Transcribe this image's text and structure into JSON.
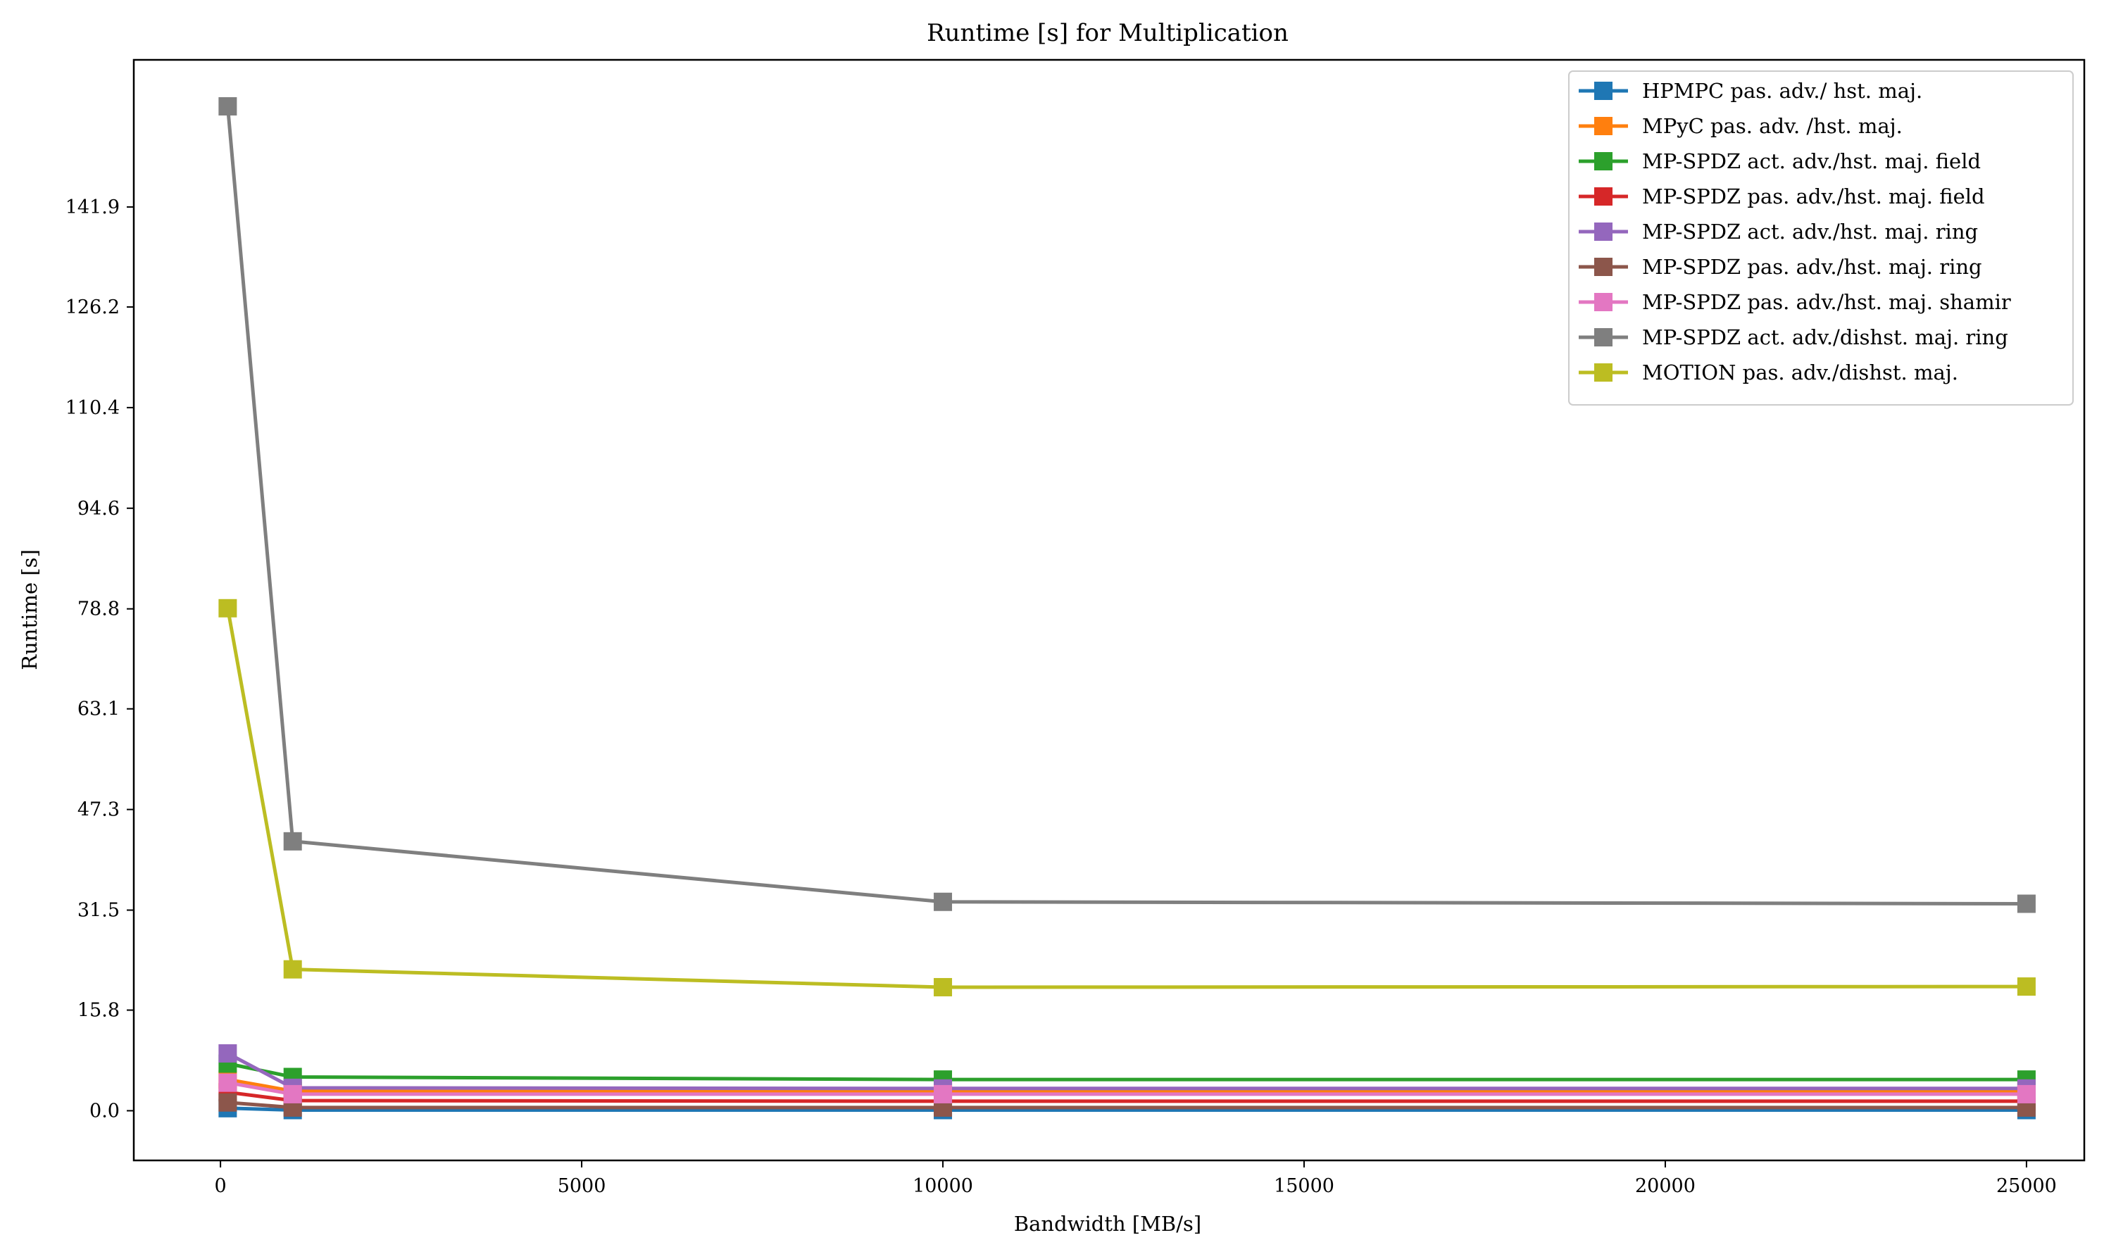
{
  "chart_data": {
    "type": "line",
    "title": "Runtime [s] for Multiplication",
    "xlabel": "Bandwidth [MB/s]",
    "ylabel": "Runtime [s]",
    "xlim": [
      -1200,
      25800
    ],
    "ylim": [
      -7.8,
      165.0
    ],
    "xticks": [
      0,
      5000,
      10000,
      15000,
      20000,
      25000
    ],
    "yticks": [
      0.0,
      15.8,
      31.5,
      47.3,
      63.1,
      78.8,
      94.6,
      110.4,
      126.2,
      141.9
    ],
    "ytick_labels": [
      "0.0",
      "15.8",
      "31.5",
      "47.3",
      "63.1",
      "78.8",
      "94.6",
      "110.4",
      "126.2",
      "141.9"
    ],
    "grid": false,
    "legend_position": "top-right",
    "marker": "square",
    "x": [
      100,
      1000,
      10000,
      25000
    ],
    "series": [
      {
        "name": "HPMPC pas. adv./ hst. maj.",
        "color": "#1f77b4",
        "values": [
          0.4,
          0.1,
          0.1,
          0.1
        ]
      },
      {
        "name": "MPyC pas. adv. /hst. maj.",
        "color": "#ff7f0e",
        "values": [
          4.9,
          3.1,
          3.1,
          3.1
        ]
      },
      {
        "name": "MP-SPDZ act. adv./hst. maj. field",
        "color": "#2ca02c",
        "values": [
          7.4,
          5.3,
          4.9,
          4.9
        ]
      },
      {
        "name": "MP-SPDZ pas. adv./hst. maj. field",
        "color": "#d62728",
        "values": [
          2.9,
          1.6,
          1.5,
          1.5
        ]
      },
      {
        "name": "MP-SPDZ act. adv./hst. maj. ring",
        "color": "#9467bd",
        "values": [
          9.0,
          3.6,
          3.5,
          3.5
        ]
      },
      {
        "name": "MP-SPDZ pas. adv./hst. maj. ring",
        "color": "#8c564b",
        "values": [
          1.3,
          0.5,
          0.5,
          0.5
        ]
      },
      {
        "name": "MP-SPDZ pas. adv./hst. maj. shamir",
        "color": "#e377c2",
        "values": [
          4.4,
          2.6,
          2.6,
          2.6
        ]
      },
      {
        "name": "MP-SPDZ act. adv./dishst. maj. ring",
        "color": "#7f7f7f",
        "values": [
          157.7,
          42.3,
          32.8,
          32.5
        ]
      },
      {
        "name": "MOTION pas. adv./dishst. maj.",
        "color": "#bcbd22",
        "values": [
          78.9,
          22.2,
          19.4,
          19.5
        ]
      }
    ]
  }
}
